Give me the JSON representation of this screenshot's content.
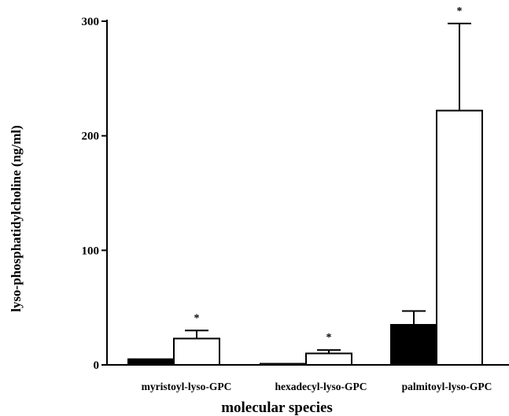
{
  "chart_data": {
    "type": "bar",
    "title": "",
    "xlabel": "molecular species",
    "ylabel": "lyso-phosphatidylcholine (ng/ml)",
    "categories": [
      "myristoyl-lyso-GPC",
      "hexadecyl-lyso-GPC",
      "palmitoyl-lyso-GPC"
    ],
    "series": [
      {
        "fill": "#000000",
        "values": [
          5,
          1,
          35
        ],
        "errors": [
          0,
          0,
          12
        ]
      },
      {
        "fill": "#ffffff",
        "values": [
          23,
          10,
          222
        ],
        "errors": [
          7,
          3,
          76
        ]
      }
    ],
    "annotations": [
      "*",
      "*",
      "*"
    ],
    "yticks": [
      0,
      100,
      200,
      300
    ],
    "ylim": [
      0,
      300
    ],
    "grid": false,
    "legend": "none"
  }
}
